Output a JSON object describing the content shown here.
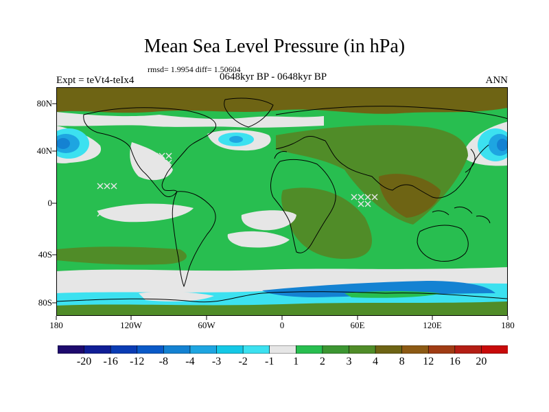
{
  "title": "Mean Sea Level Pressure (in hPa)",
  "stats": "rmsd= 1.9954 diff= 1.50604",
  "experiment": "Expt = teVt4-teIx4",
  "period": "0648kyr BP - 0648kyr BP",
  "season": "ANN",
  "lat_labels": [
    "80N",
    "40N",
    "0",
    "40S",
    "80S"
  ],
  "lon_labels": [
    "180",
    "120W",
    "60W",
    "0",
    "60E",
    "120E",
    "180"
  ],
  "colorbar": {
    "labels": [
      "-20",
      "-16",
      "-12",
      "-8",
      "-4",
      "-3",
      "-2",
      "-1",
      "1",
      "2",
      "3",
      "4",
      "8",
      "12",
      "16",
      "20"
    ],
    "colors": [
      "#1e0a6e",
      "#101e96",
      "#0a3cb4",
      "#0a5ac8",
      "#1482d2",
      "#1ea5e1",
      "#14c8e6",
      "#3ce1f0",
      "#e6e6e6",
      "#28be50",
      "#3c9632",
      "#508c28",
      "#6e6414",
      "#8c5a14",
      "#a03c14",
      "#b41e14",
      "#c80a0a"
    ]
  },
  "map_colors": {
    "land_green": "#28be50",
    "dark_green": "#3c9632",
    "olive": "#6e6414",
    "brown": "#8c5a14",
    "neutral": "#e6e6e6",
    "light_blue": "#3ce1f0",
    "mid_blue": "#1ea5e1",
    "blue": "#1482d2"
  }
}
